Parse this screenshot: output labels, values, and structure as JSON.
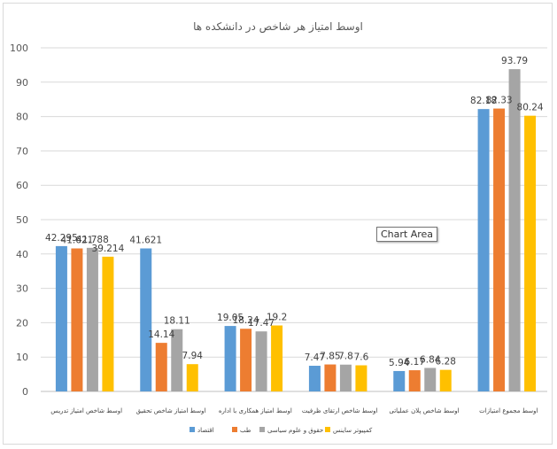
{
  "tooltip": "Chart Area",
  "chart_data": {
    "type": "bar",
    "title": "اوسط امتیاز هر شاخص در دانشکده ها",
    "ylim": [
      0,
      100
    ],
    "yticks": [
      0,
      10,
      20,
      30,
      40,
      50,
      60,
      70,
      80,
      90,
      100
    ],
    "grid": true,
    "legend_position": "bottom",
    "categories": [
      "اوسط شاخص امتیاز تدریس",
      "اوسط امتیاز شاخص تحقیق",
      "اوسط امتیاز همکاری با اداره",
      "اوسط شاخص ارتقای ظرفیت",
      "اوسط شاخص پلان عملیاتی",
      "اوسط مجموع امتیازات"
    ],
    "series": [
      {
        "name": "اقتصاد",
        "color": "#5b9bd5",
        "values": [
          42.295,
          41.621,
          19.05,
          7.47,
          5.94,
          82.18
        ],
        "labels": [
          "42.295",
          "41.621",
          "19.05",
          "7.47",
          "5.94",
          "82.18"
        ]
      },
      {
        "name": "طب",
        "color": "#ed7d31",
        "values": [
          41.621,
          14.14,
          18.24,
          7.85,
          6.17,
          82.33
        ],
        "labels": [
          "41.621",
          "14.14",
          "18.24",
          "7.85",
          "6.17",
          "82.33"
        ]
      },
      {
        "name": "حقوق و علوم سیاسی",
        "color": "#a5a5a5",
        "values": [
          41.788,
          18.11,
          17.47,
          7.8,
          6.84,
          93.79
        ],
        "labels": [
          "41.788",
          "18.11",
          "17.47",
          "7.8",
          "6.84",
          "93.79"
        ]
      },
      {
        "name": "کمپیوتر ساینس",
        "color": "#ffc000",
        "values": [
          39.214,
          7.94,
          19.2,
          7.6,
          6.28,
          80.24
        ],
        "labels": [
          "39.214",
          "7.94",
          "19.2",
          "7.6",
          "6.28",
          "80.24"
        ]
      }
    ],
    "category_0_series_0_note": ""
  }
}
